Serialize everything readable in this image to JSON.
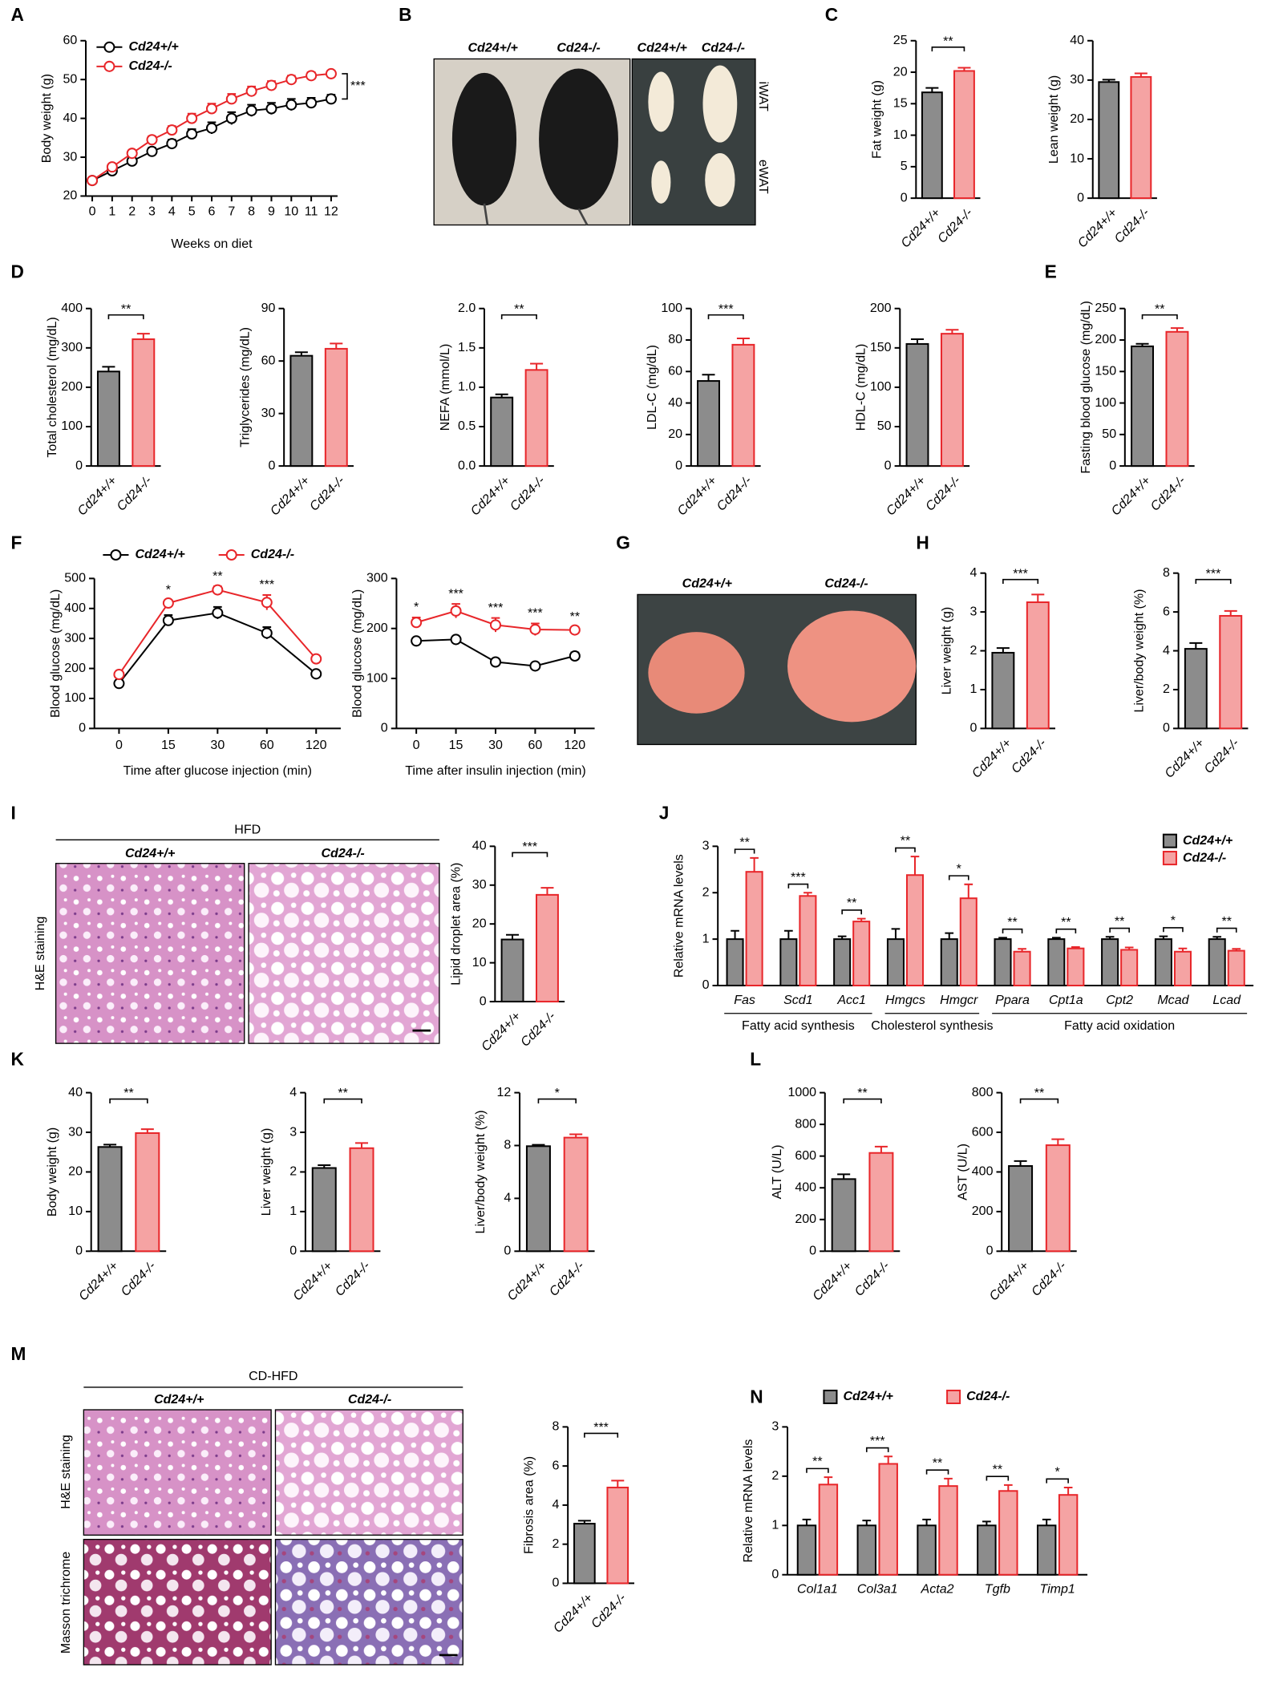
{
  "figure": {
    "panel_labels": [
      "A",
      "B",
      "C",
      "D",
      "E",
      "F",
      "G",
      "H",
      "I",
      "J",
      "K",
      "L",
      "M",
      "N"
    ]
  },
  "photos": {
    "B": [
      "Cd24+/+",
      "Cd24-/-",
      "Cd24+/+",
      "Cd24-/-",
      "iWAT",
      "eWAT"
    ],
    "G": [
      "Cd24+/+",
      "Cd24-/-"
    ],
    "I": [
      "HFD",
      "Cd24+/+",
      "Cd24-/-",
      "H&E staining"
    ],
    "M": [
      "CD-HFD",
      "Cd24+/+",
      "Cd24-/-",
      "H&E staining",
      "Masson trichrome"
    ]
  },
  "chart_data": [
    {
      "type": "line",
      "ylabel": "Body weight (g)",
      "xlabel": "Weeks on diet",
      "x": [
        0,
        1,
        2,
        3,
        4,
        5,
        6,
        7,
        8,
        9,
        10,
        11,
        12
      ],
      "xlim": [
        0,
        12
      ],
      "xticks": [
        0,
        1,
        2,
        3,
        4,
        5,
        6,
        7,
        8,
        9,
        10,
        11,
        12
      ],
      "ylim": [
        20,
        60
      ],
      "yticks": [
        20,
        30,
        40,
        50,
        60
      ],
      "legend": "top-left",
      "significance": "***",
      "series": [
        {
          "name": "Cd24+/+",
          "color": "#000000",
          "values": [
            24,
            26.5,
            29,
            31.5,
            33.5,
            36,
            37.5,
            40,
            42,
            42.5,
            43.5,
            44,
            45
          ],
          "errors": [
            0.5,
            0.6,
            0.8,
            0.9,
            1,
            1.2,
            1.5,
            1.6,
            1.5,
            1.5,
            1.5,
            1.3,
            1.1
          ]
        },
        {
          "name": "Cd24-/-",
          "color": "#e8262a",
          "values": [
            24,
            27.5,
            31,
            34.5,
            37,
            40,
            42.5,
            45,
            47,
            48.5,
            50,
            51,
            51.5
          ],
          "errors": [
            0.5,
            0.6,
            0.8,
            0.9,
            1,
            1.2,
            1.3,
            1.3,
            1.2,
            1.1,
            1,
            0.9,
            0.8
          ]
        }
      ]
    },
    {
      "type": "bar",
      "ylabel": "Fat weight (g)",
      "categories": [
        "Cd24+/+",
        "Cd24-/-"
      ],
      "values": [
        16.8,
        20.2
      ],
      "errors": [
        0.7,
        0.5
      ],
      "colors": [
        "#8c8c8c",
        "#f5a3a3"
      ],
      "edge_colors": [
        "#000000",
        "#e8262a"
      ],
      "ylim": [
        0,
        25
      ],
      "yticks": [
        0,
        5,
        10,
        15,
        20,
        25
      ],
      "significance": "**"
    },
    {
      "type": "bar",
      "ylabel": "Lean weight (g)",
      "categories": [
        "Cd24+/+",
        "Cd24-/-"
      ],
      "values": [
        29.5,
        30.8
      ],
      "errors": [
        0.6,
        0.9
      ],
      "colors": [
        "#8c8c8c",
        "#f5a3a3"
      ],
      "edge_colors": [
        "#000000",
        "#e8262a"
      ],
      "ylim": [
        0,
        40
      ],
      "yticks": [
        0,
        10,
        20,
        30,
        40
      ]
    },
    {
      "type": "bar",
      "ylabel": "Total cholesterol (mg/dL)",
      "categories": [
        "Cd24+/+",
        "Cd24-/-"
      ],
      "values": [
        240,
        322
      ],
      "errors": [
        12,
        14
      ],
      "colors": [
        "#8c8c8c",
        "#f5a3a3"
      ],
      "edge_colors": [
        "#000000",
        "#e8262a"
      ],
      "ylim": [
        0,
        400
      ],
      "yticks": [
        0,
        100,
        200,
        300,
        400
      ],
      "significance": "**"
    },
    {
      "type": "bar",
      "ylabel": "Triglycerides (mg/dL)",
      "categories": [
        "Cd24+/+",
        "Cd24-/-"
      ],
      "values": [
        63,
        67
      ],
      "errors": [
        2,
        3
      ],
      "colors": [
        "#8c8c8c",
        "#f5a3a3"
      ],
      "edge_colors": [
        "#000000",
        "#e8262a"
      ],
      "ylim": [
        0,
        90
      ],
      "yticks": [
        0,
        30,
        60,
        90
      ]
    },
    {
      "type": "bar",
      "ylabel": "NEFA (mmol/L)",
      "categories": [
        "Cd24+/+",
        "Cd24-/-"
      ],
      "values": [
        0.87,
        1.22
      ],
      "errors": [
        0.04,
        0.08
      ],
      "colors": [
        "#8c8c8c",
        "#f5a3a3"
      ],
      "edge_colors": [
        "#000000",
        "#e8262a"
      ],
      "ylim": [
        0,
        2
      ],
      "yticks": [
        {
          "value": 0,
          "label": "0.0"
        },
        0.5,
        {
          "value": 1,
          "label": "1.0"
        },
        1.5,
        {
          "value": 2,
          "label": "2.0"
        }
      ],
      "significance": "**"
    },
    {
      "type": "bar",
      "ylabel": "LDL-C (mg/dL)",
      "categories": [
        "Cd24+/+",
        "Cd24-/-"
      ],
      "values": [
        54,
        77
      ],
      "errors": [
        4,
        4
      ],
      "colors": [
        "#8c8c8c",
        "#f5a3a3"
      ],
      "edge_colors": [
        "#000000",
        "#e8262a"
      ],
      "ylim": [
        0,
        100
      ],
      "yticks": [
        0,
        20,
        40,
        60,
        80,
        100
      ],
      "significance": "***"
    },
    {
      "type": "bar",
      "ylabel": "HDL-C (mg/dL)",
      "categories": [
        "Cd24+/+",
        "Cd24-/-"
      ],
      "values": [
        155,
        168
      ],
      "errors": [
        6,
        5
      ],
      "colors": [
        "#8c8c8c",
        "#f5a3a3"
      ],
      "edge_colors": [
        "#000000",
        "#e8262a"
      ],
      "ylim": [
        0,
        200
      ],
      "yticks": [
        0,
        50,
        100,
        150,
        200
      ]
    },
    {
      "type": "bar",
      "ylabel": "Fasting blood glucose (mg/dL)",
      "categories": [
        "Cd24+/+",
        "Cd24-/-"
      ],
      "values": [
        190,
        213
      ],
      "errors": [
        4,
        6
      ],
      "colors": [
        "#8c8c8c",
        "#f5a3a3"
      ],
      "edge_colors": [
        "#000000",
        "#e8262a"
      ],
      "ylim": [
        0,
        250
      ],
      "yticks": [
        0,
        50,
        100,
        150,
        200,
        250
      ],
      "significance": "**"
    },
    {
      "type": "line",
      "ylabel": "Blood glucose (mg/dL)",
      "xlabel": "Time after glucose injection (min)",
      "categories": [
        0,
        15,
        30,
        60,
        120
      ],
      "ylim": [
        0,
        500
      ],
      "yticks": [
        0,
        100,
        200,
        300,
        400,
        500
      ],
      "legend": "top",
      "point_labels": [
        null,
        "*",
        "**",
        "***",
        null
      ],
      "series": [
        {
          "name": "Cd24+/+",
          "color": "#000000",
          "values": [
            150,
            360,
            385,
            318,
            182
          ],
          "errors": [
            8,
            18,
            20,
            20,
            8
          ]
        },
        {
          "name": "Cd24-/-",
          "color": "#e8262a",
          "values": [
            180,
            418,
            462,
            420,
            232
          ],
          "errors": [
            8,
            10,
            12,
            25,
            8
          ]
        }
      ]
    },
    {
      "type": "line",
      "ylabel": "Blood glucose (mg/dL)",
      "xlabel": "Time after insulin injection (min)",
      "categories": [
        0,
        15,
        30,
        60,
        120
      ],
      "ylim": [
        0,
        300
      ],
      "yticks": [
        0,
        100,
        200,
        300
      ],
      "point_labels": [
        "*",
        "***",
        "***",
        "***",
        "**"
      ],
      "series": [
        {
          "name": "Cd24+/+",
          "color": "#000000",
          "values": [
            175,
            178,
            133,
            125,
            145
          ],
          "errors": [
            4,
            6,
            5,
            5,
            7
          ]
        },
        {
          "name": "Cd24-/-",
          "color": "#e8262a",
          "values": [
            212,
            235,
            207,
            198,
            197
          ],
          "errors": [
            10,
            14,
            14,
            12,
            6
          ]
        }
      ]
    },
    {
      "type": "bar",
      "ylabel": "Liver weight (g)",
      "categories": [
        "Cd24+/+",
        "Cd24-/-"
      ],
      "values": [
        1.95,
        3.25
      ],
      "errors": [
        0.12,
        0.2
      ],
      "colors": [
        "#8c8c8c",
        "#f5a3a3"
      ],
      "edge_colors": [
        "#000000",
        "#e8262a"
      ],
      "ylim": [
        0,
        4
      ],
      "yticks": [
        0,
        1,
        2,
        3,
        4
      ],
      "significance": "***"
    },
    {
      "type": "bar",
      "ylabel": "Liver/body weight (%)",
      "categories": [
        "Cd24+/+",
        "Cd24-/-"
      ],
      "values": [
        4.1,
        5.8
      ],
      "errors": [
        0.3,
        0.25
      ],
      "colors": [
        "#8c8c8c",
        "#f5a3a3"
      ],
      "edge_colors": [
        "#000000",
        "#e8262a"
      ],
      "ylim": [
        0,
        8
      ],
      "yticks": [
        0,
        2,
        4,
        6,
        8
      ],
      "significance": "***"
    },
    {
      "type": "bar",
      "ylabel": "Lipid droplet area (%)",
      "categories": [
        "Cd24+/+",
        "Cd24-/-"
      ],
      "values": [
        16,
        27.5
      ],
      "errors": [
        1.2,
        1.8
      ],
      "colors": [
        "#8c8c8c",
        "#f5a3a3"
      ],
      "edge_colors": [
        "#000000",
        "#e8262a"
      ],
      "ylim": [
        0,
        40
      ],
      "yticks": [
        0,
        10,
        20,
        30,
        40
      ],
      "significance": "***"
    },
    {
      "type": "grouped_bar",
      "ylabel": "Relative mRNA levels",
      "categories": [
        "Fas",
        "Scd1",
        "Acc1",
        "Hmgcs",
        "Hmgcr",
        "Ppara",
        "Cpt1a",
        "Cpt2",
        "Mcad",
        "Lcad"
      ],
      "ylim": [
        0,
        3
      ],
      "yticks": [
        0,
        1,
        2,
        3
      ],
      "legend": "top-right",
      "significance": [
        "**",
        "***",
        "**",
        "**",
        "*",
        "**",
        "**",
        "**",
        "*",
        "**"
      ],
      "groups": [
        "Fatty acid synthesis",
        "Cholesterol synthesis",
        "Fatty acid oxidation"
      ],
      "series": [
        {
          "name": "Cd24+/+",
          "color": "#8c8c8c",
          "edge_color": "#000000",
          "values": [
            1,
            1,
            1,
            1,
            1,
            1,
            1,
            1,
            1,
            1
          ],
          "errors": [
            0.18,
            0.18,
            0.06,
            0.22,
            0.13,
            0.03,
            0.03,
            0.05,
            0.06,
            0.05
          ]
        },
        {
          "name": "Cd24-/-",
          "color": "#f5a3a3",
          "edge_color": "#e8262a",
          "values": [
            2.45,
            1.93,
            1.38,
            2.38,
            1.88,
            0.73,
            0.8,
            0.77,
            0.73,
            0.75
          ],
          "errors": [
            0.3,
            0.07,
            0.06,
            0.4,
            0.3,
            0.06,
            0.03,
            0.05,
            0.07,
            0.04
          ]
        }
      ]
    },
    {
      "type": "bar",
      "ylabel": "Body weight (g)",
      "categories": [
        "Cd24+/+",
        "Cd24-/-"
      ],
      "values": [
        26.3,
        29.8
      ],
      "errors": [
        0.6,
        1
      ],
      "colors": [
        "#8c8c8c",
        "#f5a3a3"
      ],
      "edge_colors": [
        "#000000",
        "#e8262a"
      ],
      "ylim": [
        0,
        40
      ],
      "yticks": [
        0,
        10,
        20,
        30,
        40
      ],
      "significance": "**"
    },
    {
      "type": "bar",
      "ylabel": "Liver weight (g)",
      "categories": [
        "Cd24+/+",
        "Cd24-/-"
      ],
      "values": [
        2.1,
        2.6
      ],
      "errors": [
        0.07,
        0.13
      ],
      "colors": [
        "#8c8c8c",
        "#f5a3a3"
      ],
      "edge_colors": [
        "#000000",
        "#e8262a"
      ],
      "ylim": [
        0,
        4
      ],
      "yticks": [
        0,
        1,
        2,
        3,
        4
      ],
      "significance": "**"
    },
    {
      "type": "bar",
      "ylabel": "Liver/body weight (%)",
      "categories": [
        "Cd24+/+",
        "Cd24-/-"
      ],
      "values": [
        7.95,
        8.6
      ],
      "errors": [
        0.1,
        0.25
      ],
      "colors": [
        "#8c8c8c",
        "#f5a3a3"
      ],
      "edge_colors": [
        "#000000",
        "#e8262a"
      ],
      "ylim": [
        0,
        12
      ],
      "yticks": [
        0,
        4,
        8,
        12
      ],
      "significance": "*"
    },
    {
      "type": "bar",
      "ylabel": "ALT (U/L)",
      "categories": [
        "Cd24+/+",
        "Cd24-/-"
      ],
      "values": [
        455,
        620
      ],
      "errors": [
        30,
        40
      ],
      "colors": [
        "#8c8c8c",
        "#f5a3a3"
      ],
      "edge_colors": [
        "#000000",
        "#e8262a"
      ],
      "ylim": [
        0,
        1000
      ],
      "yticks": [
        0,
        200,
        400,
        600,
        800,
        1000
      ],
      "significance": "**"
    },
    {
      "type": "bar",
      "ylabel": "AST (U/L)",
      "categories": [
        "Cd24+/+",
        "Cd24-/-"
      ],
      "values": [
        430,
        535
      ],
      "errors": [
        25,
        30
      ],
      "colors": [
        "#8c8c8c",
        "#f5a3a3"
      ],
      "edge_colors": [
        "#000000",
        "#e8262a"
      ],
      "ylim": [
        0,
        800
      ],
      "yticks": [
        0,
        200,
        400,
        600,
        800
      ],
      "significance": "**"
    },
    {
      "type": "bar",
      "ylabel": "Fibrosis area (%)",
      "categories": [
        "Cd24+/+",
        "Cd24-/-"
      ],
      "values": [
        3.05,
        4.9
      ],
      "errors": [
        0.15,
        0.35
      ],
      "colors": [
        "#8c8c8c",
        "#f5a3a3"
      ],
      "edge_colors": [
        "#000000",
        "#e8262a"
      ],
      "ylim": [
        0,
        8
      ],
      "yticks": [
        0,
        2,
        4,
        6,
        8
      ],
      "significance": "***"
    },
    {
      "type": "grouped_bar",
      "ylabel": "Relative mRNA levels",
      "categories": [
        "Col1a1",
        "Col3a1",
        "Acta2",
        "Tgfb",
        "Timp1"
      ],
      "ylim": [
        0,
        3
      ],
      "yticks": [
        0,
        1,
        2,
        3
      ],
      "legend": "top",
      "significance": [
        "**",
        "***",
        "**",
        "**",
        "*"
      ],
      "series": [
        {
          "name": "Cd24+/+",
          "color": "#8c8c8c",
          "edge_color": "#000000",
          "values": [
            1,
            1,
            1,
            1,
            1
          ],
          "errors": [
            0.12,
            0.1,
            0.12,
            0.08,
            0.12
          ]
        },
        {
          "name": "Cd24-/-",
          "color": "#f5a3a3",
          "edge_color": "#e8262a",
          "values": [
            1.83,
            2.25,
            1.8,
            1.7,
            1.62
          ],
          "errors": [
            0.15,
            0.15,
            0.15,
            0.12,
            0.15
          ]
        }
      ]
    }
  ]
}
